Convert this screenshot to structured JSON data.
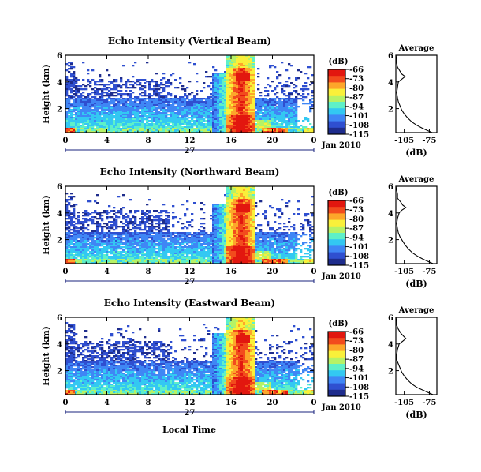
{
  "figure": {
    "xlabel": "Local Time",
    "date_label": "Jan 2010",
    "day_label": "27"
  },
  "colors": {
    "colormap": [
      "#1e2c8c",
      "#2f4fd0",
      "#3f86f5",
      "#33c8f2",
      "#5ef0c8",
      "#b6f266",
      "#f9f03a",
      "#fda62a",
      "#f24b1d",
      "#e2170f"
    ],
    "average_line": "#000000",
    "axis_navy": "#1a237e"
  },
  "chart_data": [
    {
      "type": "heatmap",
      "title": "Echo Intensity (Vertical Beam)",
      "xlabel": "Local Time",
      "ylabel": "Height (km)",
      "x_ticks": [
        "0",
        "4",
        "8",
        "12",
        "16",
        "20",
        "0"
      ],
      "y_ticks": [
        "6",
        "4",
        "2"
      ],
      "xlim": [
        0,
        24
      ],
      "ylim": [
        0.2,
        6
      ],
      "colorbar": {
        "label": "(dB)",
        "ticks": [
          "-66",
          "-73",
          "-80",
          "-87",
          "-94",
          "-101",
          "-108",
          "-115"
        ],
        "range": [
          -115,
          -66
        ]
      },
      "features": {
        "rain_band_hours": [
          15.6,
          18.4
        ],
        "melting_layer_km": 4.4,
        "boundary_layer_top_km": 2.8,
        "sparse_echo_top_km": 5.5
      },
      "average_profile": {
        "title": "Average",
        "xlabel": "(dB)",
        "x_ticks": [
          "-105",
          "-75"
        ],
        "y_ticks": [
          "6",
          "4",
          "2"
        ],
        "xlim": [
          -115,
          -66
        ],
        "ylim": [
          0.2,
          6
        ],
        "points": [
          [
            -115,
            6.0
          ],
          [
            -114,
            5.7
          ],
          [
            -114,
            5.4
          ],
          [
            -113,
            5.1
          ],
          [
            -110,
            4.8
          ],
          [
            -108,
            4.6
          ],
          [
            -104,
            4.4
          ],
          [
            -108,
            4.2
          ],
          [
            -112,
            4.0
          ],
          [
            -113,
            3.6
          ],
          [
            -114,
            3.2
          ],
          [
            -113,
            2.8
          ],
          [
            -112,
            2.5
          ],
          [
            -110,
            2.2
          ],
          [
            -108,
            1.9
          ],
          [
            -105,
            1.6
          ],
          [
            -101,
            1.3
          ],
          [
            -96,
            1.0
          ],
          [
            -90,
            0.75
          ],
          [
            -84,
            0.55
          ],
          [
            -77,
            0.35
          ],
          [
            -72,
            0.22
          ]
        ]
      }
    },
    {
      "type": "heatmap",
      "title": "Echo Intensity (Northward Beam)",
      "xlabel": "Local Time",
      "ylabel": "Height (km)",
      "x_ticks": [
        "0",
        "4",
        "8",
        "12",
        "16",
        "20",
        "0"
      ],
      "y_ticks": [
        "6",
        "4",
        "2"
      ],
      "xlim": [
        0,
        24
      ],
      "ylim": [
        0.2,
        6
      ],
      "colorbar": {
        "label": "(dB)",
        "ticks": [
          "-66",
          "-73",
          "-80",
          "-87",
          "-94",
          "-101",
          "-108",
          "-115"
        ],
        "range": [
          -115,
          -66
        ]
      },
      "features": {
        "rain_band_hours": [
          15.6,
          18.4
        ],
        "melting_layer_km": 4.4,
        "boundary_layer_top_km": 2.6,
        "sparse_echo_top_km": 5.5
      },
      "average_profile": {
        "title": "Average",
        "xlabel": "(dB)",
        "x_ticks": [
          "-105",
          "-75"
        ],
        "y_ticks": [
          "6",
          "4",
          "2"
        ],
        "xlim": [
          -115,
          -66
        ],
        "ylim": [
          0.2,
          6
        ],
        "points": [
          [
            -115,
            6.0
          ],
          [
            -114,
            5.7
          ],
          [
            -113,
            5.4
          ],
          [
            -113,
            5.1
          ],
          [
            -109,
            4.8
          ],
          [
            -107,
            4.6
          ],
          [
            -103,
            4.4
          ],
          [
            -108,
            4.2
          ],
          [
            -111,
            4.0
          ],
          [
            -113,
            3.6
          ],
          [
            -114,
            3.2
          ],
          [
            -113,
            2.8
          ],
          [
            -112,
            2.5
          ],
          [
            -110,
            2.2
          ],
          [
            -107,
            1.9
          ],
          [
            -104,
            1.6
          ],
          [
            -100,
            1.3
          ],
          [
            -95,
            1.0
          ],
          [
            -89,
            0.75
          ],
          [
            -83,
            0.55
          ],
          [
            -76,
            0.35
          ],
          [
            -71,
            0.22
          ]
        ]
      }
    },
    {
      "type": "heatmap",
      "title": "Echo Intensity (Eastward Beam)",
      "xlabel": "Local Time",
      "ylabel": "Height (km)",
      "x_ticks": [
        "0",
        "4",
        "8",
        "12",
        "16",
        "20",
        "0"
      ],
      "y_ticks": [
        "6",
        "4",
        "2"
      ],
      "xlim": [
        0,
        24
      ],
      "ylim": [
        0.2,
        6
      ],
      "colorbar": {
        "label": "(dB)",
        "ticks": [
          "-66",
          "-73",
          "-80",
          "-87",
          "-94",
          "-101",
          "-108",
          "-115"
        ],
        "range": [
          -115,
          -66
        ]
      },
      "features": {
        "rain_band_hours": [
          15.6,
          18.4
        ],
        "melting_layer_km": 4.4,
        "boundary_layer_top_km": 2.7,
        "sparse_echo_top_km": 5.6
      },
      "average_profile": {
        "title": "Average",
        "xlabel": "(dB)",
        "x_ticks": [
          "-105",
          "-75"
        ],
        "y_ticks": [
          "6",
          "4",
          "2"
        ],
        "xlim": [
          -115,
          -66
        ],
        "ylim": [
          0.2,
          6
        ],
        "points": [
          [
            -115,
            6.0
          ],
          [
            -114,
            5.7
          ],
          [
            -114,
            5.4
          ],
          [
            -112,
            5.1
          ],
          [
            -109,
            4.8
          ],
          [
            -106,
            4.6
          ],
          [
            -103,
            4.4
          ],
          [
            -107,
            4.2
          ],
          [
            -111,
            4.0
          ],
          [
            -113,
            3.6
          ],
          [
            -114,
            3.2
          ],
          [
            -114,
            2.8
          ],
          [
            -112,
            2.5
          ],
          [
            -110,
            2.2
          ],
          [
            -108,
            1.9
          ],
          [
            -105,
            1.6
          ],
          [
            -101,
            1.3
          ],
          [
            -96,
            1.0
          ],
          [
            -90,
            0.75
          ],
          [
            -83,
            0.55
          ],
          [
            -76,
            0.35
          ],
          [
            -71,
            0.22
          ]
        ]
      }
    }
  ]
}
